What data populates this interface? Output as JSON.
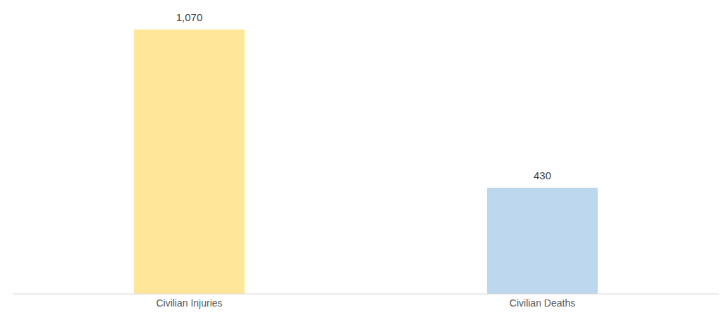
{
  "chart_data": {
    "type": "bar",
    "categories": [
      "Civilian Injuries",
      "Civilian Deaths"
    ],
    "values": [
      1070,
      430
    ],
    "value_labels": [
      "1,070",
      "430"
    ],
    "colors": [
      "#FFE699",
      "#BDD7EE"
    ],
    "data_labels": true,
    "tick_labels": "x",
    "grid": false
  }
}
